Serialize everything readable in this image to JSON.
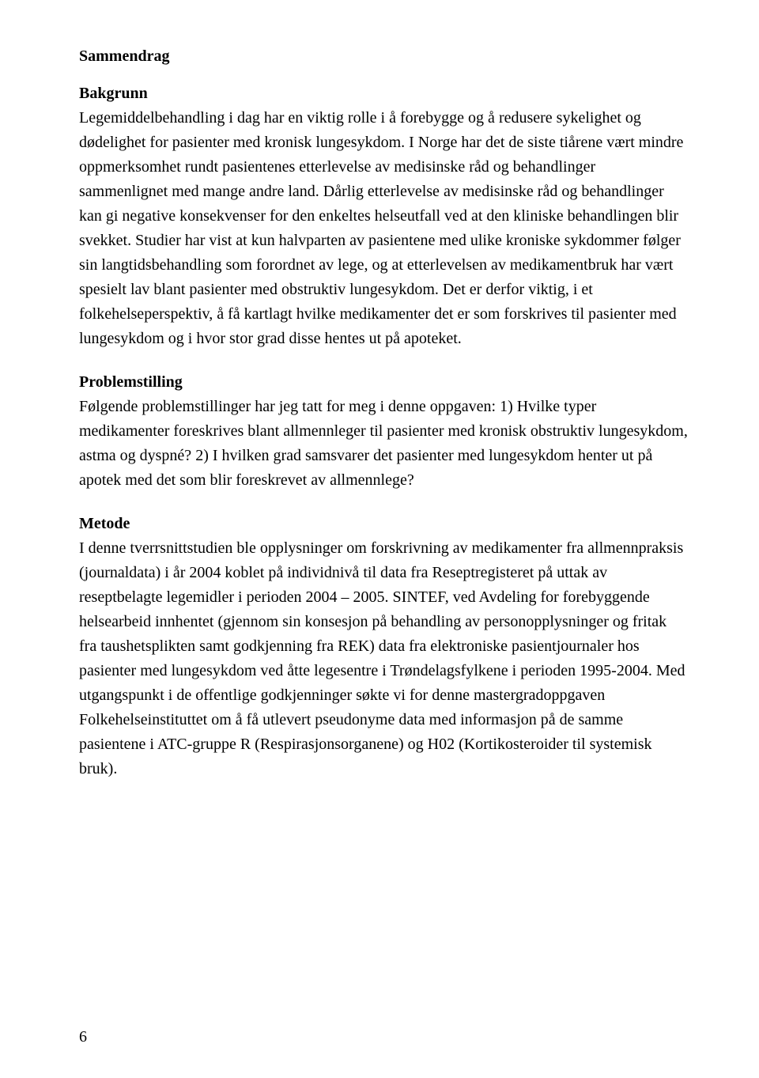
{
  "headings": {
    "main": "Sammendrag",
    "background": "Bakgrunn",
    "problem": "Problemstilling",
    "method": "Metode"
  },
  "paragraphs": {
    "background": "Legemiddelbehandling i dag har en viktig rolle i å forebygge og å redusere sykelighet og dødelighet for pasienter med kronisk lungesykdom. I Norge har det de siste tiårene vært mindre oppmerksomhet rundt pasientenes etterlevelse av medisinske råd og behandlinger sammenlignet med mange andre land. Dårlig etterlevelse av medisinske råd og behandlinger kan gi negative konsekvenser for den enkeltes helseutfall ved at den kliniske behandlingen blir svekket. Studier har vist at kun halvparten av pasientene med ulike kroniske sykdommer følger sin langtidsbehandling som forordnet av lege, og at etterlevelsen av medikamentbruk har vært spesielt lav blant pasienter med obstruktiv lungesykdom. Det er derfor viktig, i et folkehelseperspektiv, å få kartlagt hvilke medikamenter det er som forskrives til pasienter med lungesykdom og i hvor stor grad disse hentes ut på apoteket.",
    "problem": "Følgende problemstillinger har jeg tatt for meg i denne oppgaven: 1) Hvilke typer medikamenter foreskrives blant allmennleger til pasienter med kronisk obstruktiv lungesykdom, astma og dyspné? 2) I hvilken grad samsvarer det pasienter med lungesykdom henter ut på apotek med det som blir foreskrevet av allmennlege?",
    "method": "I denne tverrsnittstudien ble opplysninger om forskrivning av medikamenter fra allmennpraksis (journaldata) i år 2004 koblet på individnivå til data fra Reseptregisteret på uttak av reseptbelagte legemidler i perioden 2004 – 2005. SINTEF, ved Avdeling for forebyggende helsearbeid innhentet (gjennom sin konsesjon på behandling av personopplysninger og fritak fra taushetsplikten samt godkjenning fra REK) data fra elektroniske pasientjournaler hos pasienter med lungesykdom ved åtte legesentre i Trøndelagsfylkene i perioden 1995-2004. Med utgangspunkt i de offentlige godkjenninger søkte vi for denne mastergradoppgaven Folkehelseinstituttet om å få utlevert pseudonyme data med informasjon på de samme pasientene i ATC-gruppe R (Respirasjonsorganene) og H02 (Kortikosteroider til systemisk bruk)."
  },
  "pageNumber": "6"
}
